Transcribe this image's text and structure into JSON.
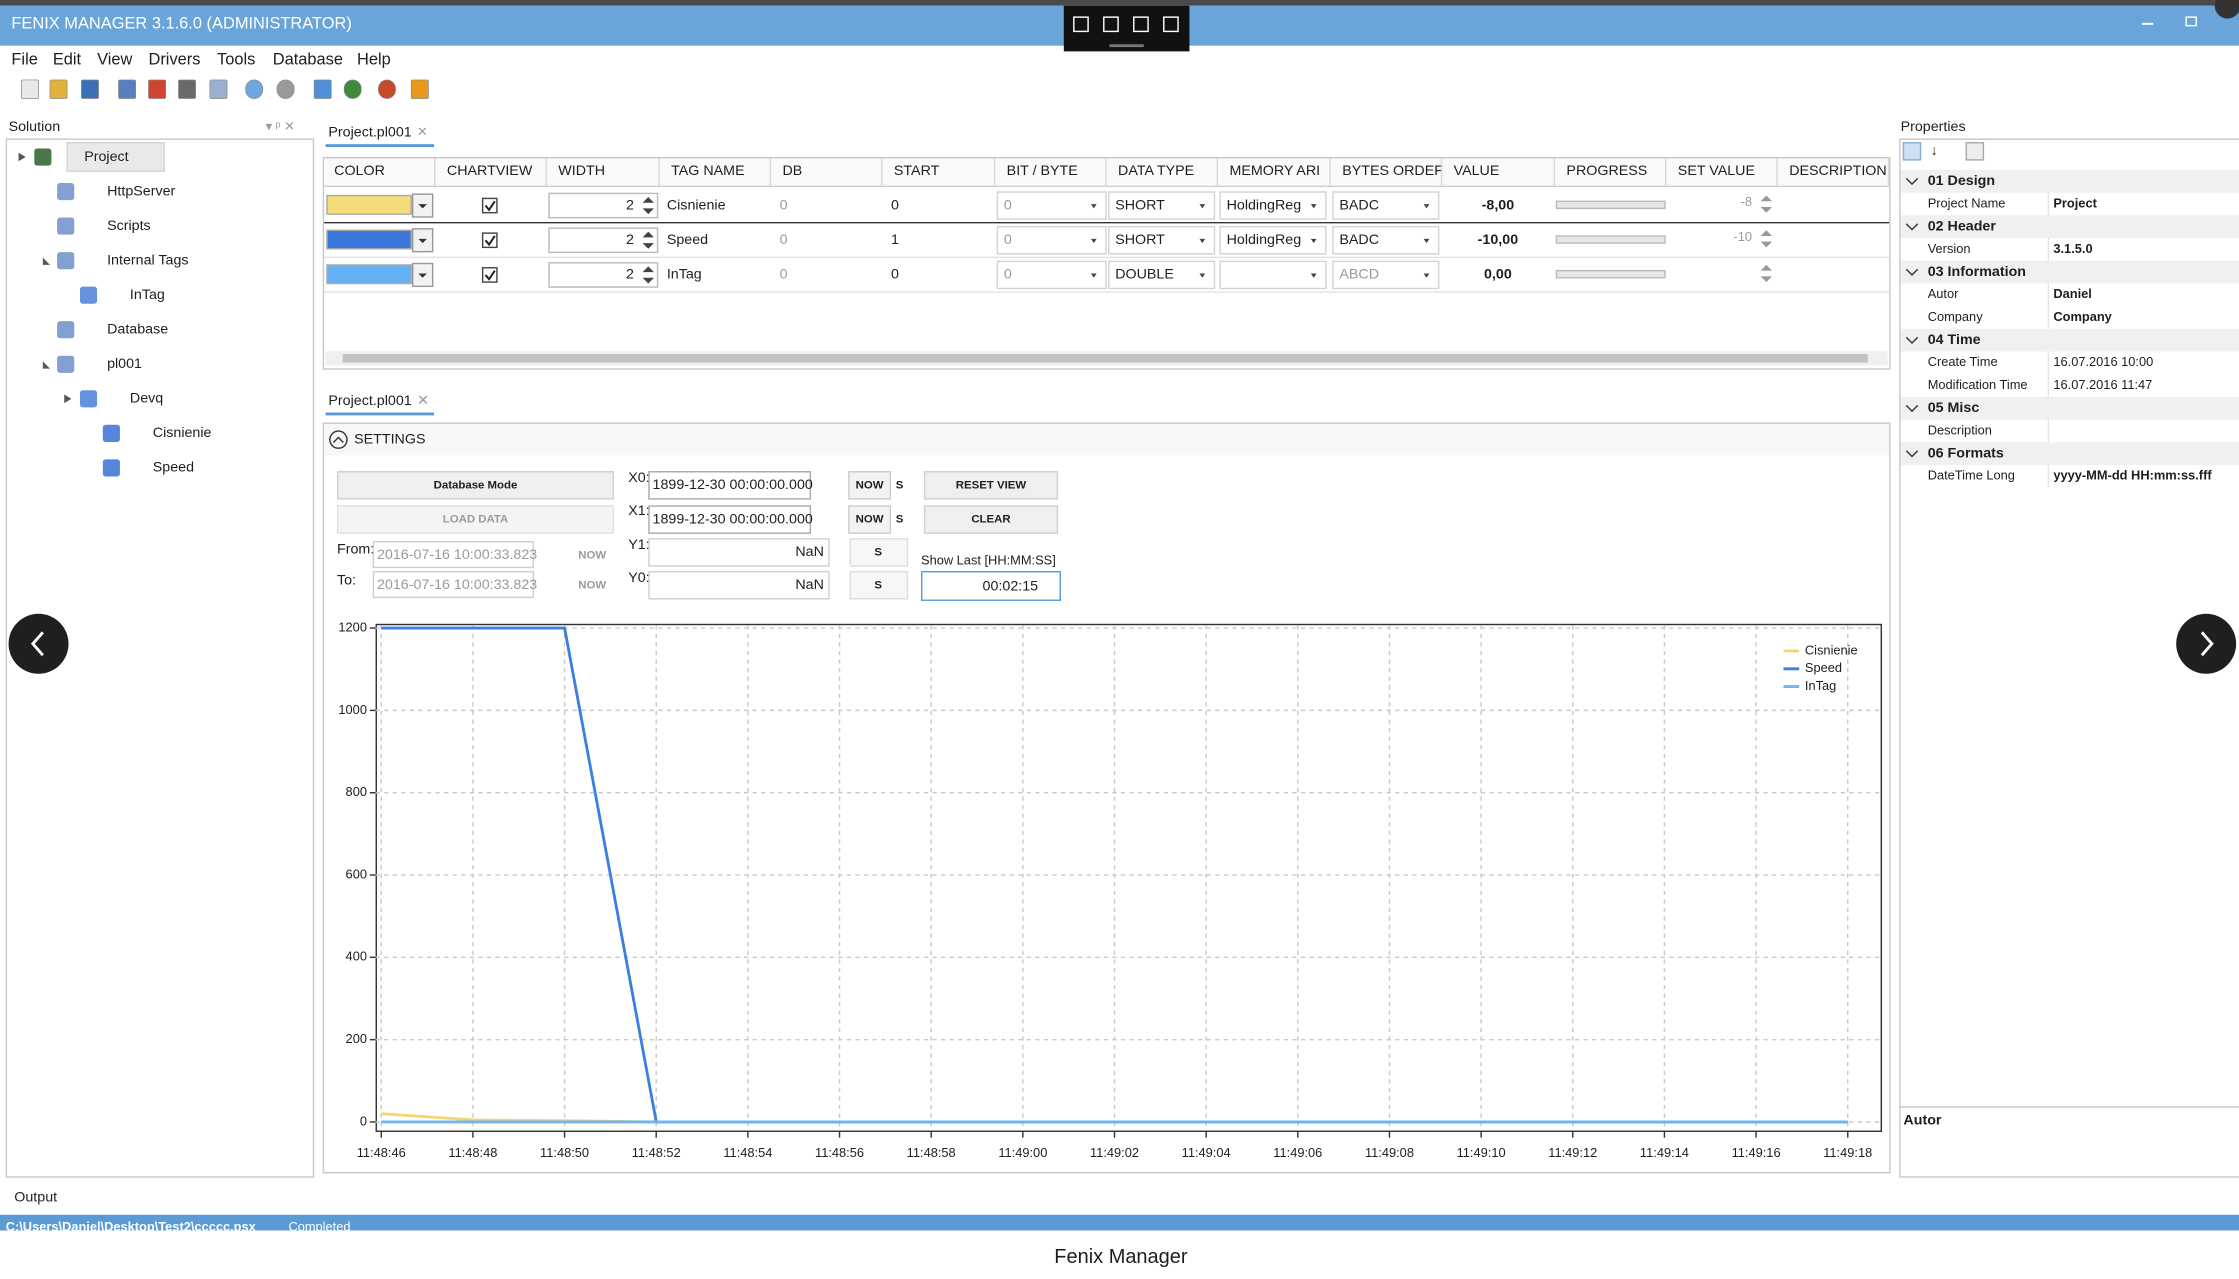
{
  "window": {
    "title": "FENIX MANAGER 3.1.6.0 (ADMINISTRATOR)"
  },
  "menu": [
    "File",
    "Edit",
    "View",
    "Drivers",
    "Tools",
    "Database",
    "Help"
  ],
  "solution": {
    "title": "Solution",
    "tree": [
      {
        "label": "Project",
        "children": [
          {
            "label": "HttpServer"
          },
          {
            "label": "Scripts"
          },
          {
            "label": "Internal Tags",
            "children": [
              {
                "label": "InTag"
              }
            ]
          },
          {
            "label": "Database"
          },
          {
            "label": "pl001",
            "children": [
              {
                "label": "Devq",
                "children": [
                  {
                    "label": "Cisnienie"
                  },
                  {
                    "label": "Speed"
                  }
                ]
              }
            ]
          }
        ]
      }
    ]
  },
  "tags_grid": {
    "tab": "Project.pl001",
    "columns": [
      "COLOR",
      "CHARTVIEW",
      "WIDTH",
      "TAG NAME",
      "DB",
      "START",
      "BIT / BYTE",
      "DATA TYPE",
      "MEMORY ARI",
      "BYTES ORDEF",
      "VALUE",
      "PROGRESS",
      "SET VALUE",
      "DESCRIPTION"
    ],
    "rows": [
      {
        "color": "#f5dc7a",
        "chartview": true,
        "width": "2",
        "tag": "Cisnienie",
        "db": "0",
        "start": "0",
        "bit": "0",
        "data_type": "SHORT",
        "memory": "HoldingReg",
        "bytes_order": "BADC",
        "value": "-8,00",
        "set_value": "-8"
      },
      {
        "color": "#3a78dd",
        "chartview": true,
        "width": "2",
        "tag": "Speed",
        "db": "0",
        "start": "1",
        "bit": "0",
        "data_type": "SHORT",
        "memory": "HoldingReg",
        "bytes_order": "BADC",
        "value": "-10,00",
        "set_value": "-10"
      },
      {
        "color": "#64b0f2",
        "chartview": true,
        "width": "2",
        "tag": "InTag",
        "db": "0",
        "start": "0",
        "bit": "0",
        "data_type": "DOUBLE",
        "bytes_order": "ABCD",
        "value": "0,00"
      }
    ]
  },
  "chart_panel": {
    "tab": "Project.pl001",
    "settings": "SETTINGS",
    "database_mode": "Database Mode",
    "load_data": "LOAD DATA",
    "from_label": "From:",
    "from": "2016-07-16 10:00:33.823",
    "to_label": "To:",
    "to": "2016-07-16 10:00:33.823",
    "now": "NOW",
    "x0_label": "X0:",
    "x0": "1899-12-30 00:00:00.000",
    "x1_label": "X1:",
    "x1": "1899-12-30 00:00:00.000",
    "y1_label": "Y1:",
    "y1": "NaN",
    "y0_label": "Y0:",
    "y0": "NaN",
    "s": "S",
    "reset_view": "RESET VIEW",
    "clear": "CLEAR",
    "show_last_label": "Show Last [HH:MM:SS]",
    "show_last": "00:02:15"
  },
  "chart_data": {
    "type": "line",
    "categories": [
      "11:48:46",
      "11:48:48",
      "11:48:50",
      "11:48:52",
      "11:48:54",
      "11:48:56",
      "11:48:58",
      "11:49:00",
      "11:49:02",
      "11:49:04",
      "11:49:06",
      "11:49:08",
      "11:49:10",
      "11:49:12",
      "11:49:14",
      "11:49:16",
      "11:49:18"
    ],
    "series": [
      {
        "name": "Cisnienie",
        "color": "#f2d675",
        "values": [
          20,
          5,
          3,
          0,
          0,
          0,
          0,
          0,
          0,
          0,
          0,
          0,
          0,
          0,
          0,
          0,
          0
        ]
      },
      {
        "name": "Speed",
        "color": "#3b7fe0",
        "values": [
          1200,
          1200,
          1200,
          0,
          0,
          0,
          0,
          0,
          0,
          0,
          0,
          0,
          0,
          0,
          0,
          0,
          0
        ]
      },
      {
        "name": "InTag",
        "color": "#6db6f2",
        "values": [
          0,
          0,
          0,
          0,
          0,
          0,
          0,
          0,
          0,
          0,
          0,
          0,
          0,
          0,
          0,
          0,
          0
        ]
      }
    ],
    "ylim": [
      0,
      1200
    ],
    "yticks": [
      0,
      200,
      400,
      600,
      800,
      1000,
      1200
    ],
    "grid": true,
    "legend": "top-right"
  },
  "properties": {
    "title": "Properties",
    "sections": [
      {
        "title": "01 Design",
        "rows": [
          {
            "name": "Project Name",
            "value": "Project"
          }
        ]
      },
      {
        "title": "02 Header",
        "rows": [
          {
            "name": "Version",
            "value": "3.1.5.0"
          }
        ]
      },
      {
        "title": "03 Information",
        "rows": [
          {
            "name": "Autor",
            "value": "Daniel"
          },
          {
            "name": "Company",
            "value": "Company"
          }
        ]
      },
      {
        "title": "04 Time",
        "rows": [
          {
            "name": "Create Time",
            "value": "16.07.2016 10:00"
          },
          {
            "name": "Modification Time",
            "value": "16.07.2016 11:47"
          }
        ]
      },
      {
        "title": "05 Misc",
        "rows": [
          {
            "name": "Description"
          }
        ]
      },
      {
        "title": "06 Formats",
        "rows": [
          {
            "name": "DateTime Long",
            "value": "yyyy-MM-dd HH:mm:ss.fff"
          }
        ]
      }
    ],
    "description_title": "Autor"
  },
  "output": {
    "title": "Output"
  },
  "status": {
    "path": "C:\\Users\\Daniel\\Desktop\\Test2\\ccccc.psx",
    "state": "Completed"
  },
  "caption": "Fenix Manager"
}
